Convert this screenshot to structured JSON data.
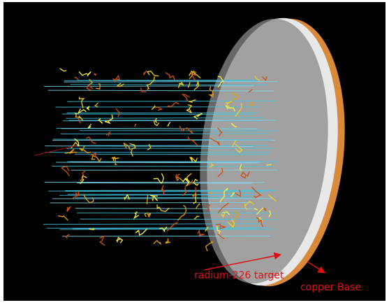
{
  "annotations": {
    "target": "radium-226 target",
    "base": "copper Base"
  }
}
